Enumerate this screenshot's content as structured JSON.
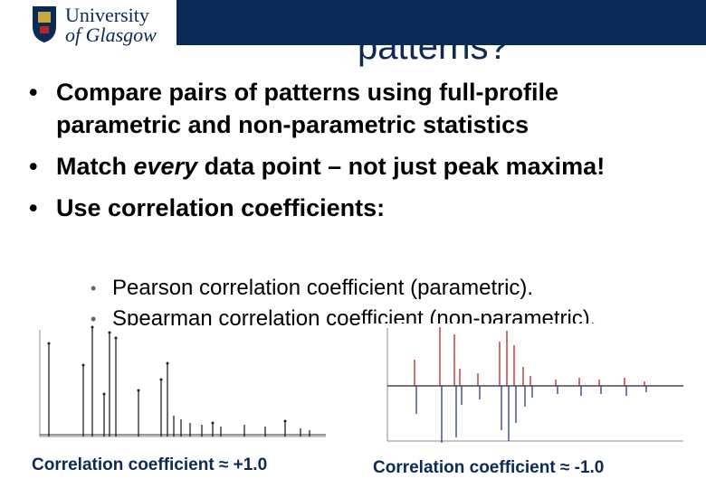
{
  "header": {
    "logo": {
      "line1": "University",
      "line2": "of Glasgow"
    },
    "title": "patterns?"
  },
  "bullets": [
    {
      "text": "Compare pairs of patterns using full-profile parametric and non-parametric statistics"
    },
    {
      "before": "Match ",
      "emphasis": "every",
      "after": " data point – not just peak maxima!"
    },
    {
      "text": "Use correlation coefficients:"
    }
  ],
  "sub_bullets": [
    "Pearson correlation coefficient (parametric).",
    "Spearman correlation coefficient (non-parametric)."
  ],
  "figures": [
    {
      "caption": "Correlation coefficient ≈ +1.0"
    },
    {
      "caption": "Correlation coefficient ≈ -1.0"
    }
  ]
}
